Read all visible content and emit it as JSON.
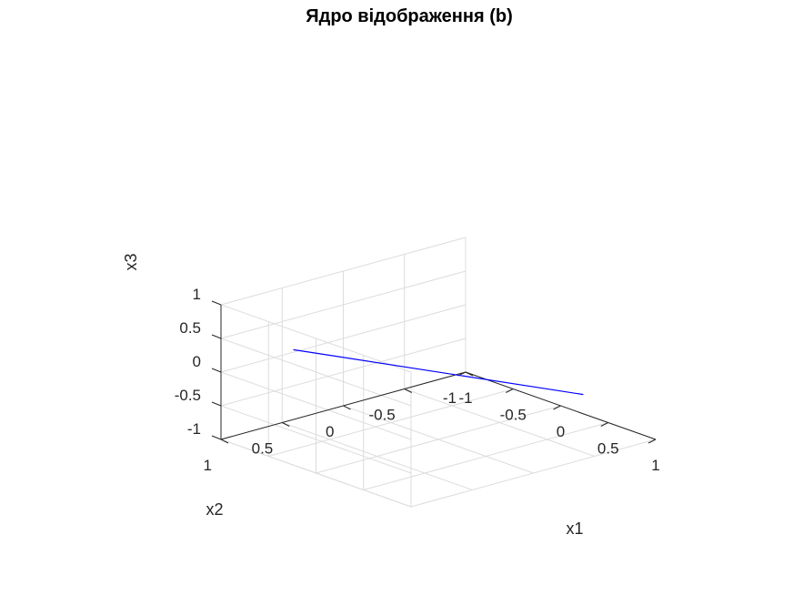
{
  "chart_data": {
    "type": "line3d",
    "title": "Ядро відображення (b)",
    "xlabel": "x1",
    "ylabel": "x2",
    "zlabel": "x3",
    "xlim": [
      -1,
      1
    ],
    "ylim": [
      -1,
      1
    ],
    "zlim": [
      -1,
      1
    ],
    "xticks": [
      "-1",
      "-0.5",
      "0",
      "0.5",
      "1"
    ],
    "yticks": [
      "-1",
      "-0.5",
      "0",
      "0.5",
      "1"
    ],
    "zticks": [
      "-1",
      "-0.5",
      "0",
      "0.5",
      "1"
    ],
    "grid": true,
    "view": "3-D default (az -37.5, el 30)",
    "series": [
      {
        "color": "#0000ff",
        "x": [
          -0.667,
          0.667
        ],
        "y": [
          0.667,
          -0.667
        ],
        "z": [
          0.333,
          -0.333
        ]
      }
    ]
  }
}
